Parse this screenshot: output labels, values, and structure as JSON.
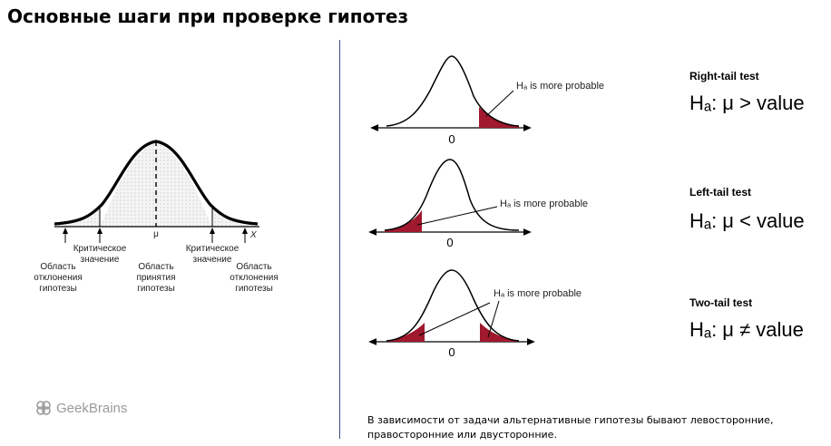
{
  "title": "Основные шаги при проверке гипотез",
  "left_diagram": {
    "mu_label": "μ",
    "x_label": "X",
    "critical_left": "Критическое значение",
    "critical_right": "Критическое значение",
    "reject_left": "Область отклонения гипотезы",
    "accept": "Область принятия гипотезы",
    "reject_right": "Область отклонения гипотезы"
  },
  "tests": [
    {
      "name": "Right-tail test",
      "formula": "Hₐ: μ > value",
      "annotation": "Hₐ is more probable",
      "zero": "0"
    },
    {
      "name": "Left-tail test",
      "formula": "Hₐ: μ < value",
      "annotation": "Hₐ is more probable",
      "zero": "0"
    },
    {
      "name": "Two-tail test",
      "formula": "Hₐ: μ ≠ value",
      "annotation": "Hₐ is more probable",
      "zero": "0"
    }
  ],
  "colors": {
    "tail": "#a0192e",
    "divider": "#3b4a86",
    "logo": "#9a9a9a"
  },
  "logo": {
    "text": "GeekBrains",
    "icon": "geekbrains-logo-icon"
  },
  "caption": "В зависимости от задачи альтернативные гипотезы бывают левосторонние, правосторонние или двусторонние."
}
